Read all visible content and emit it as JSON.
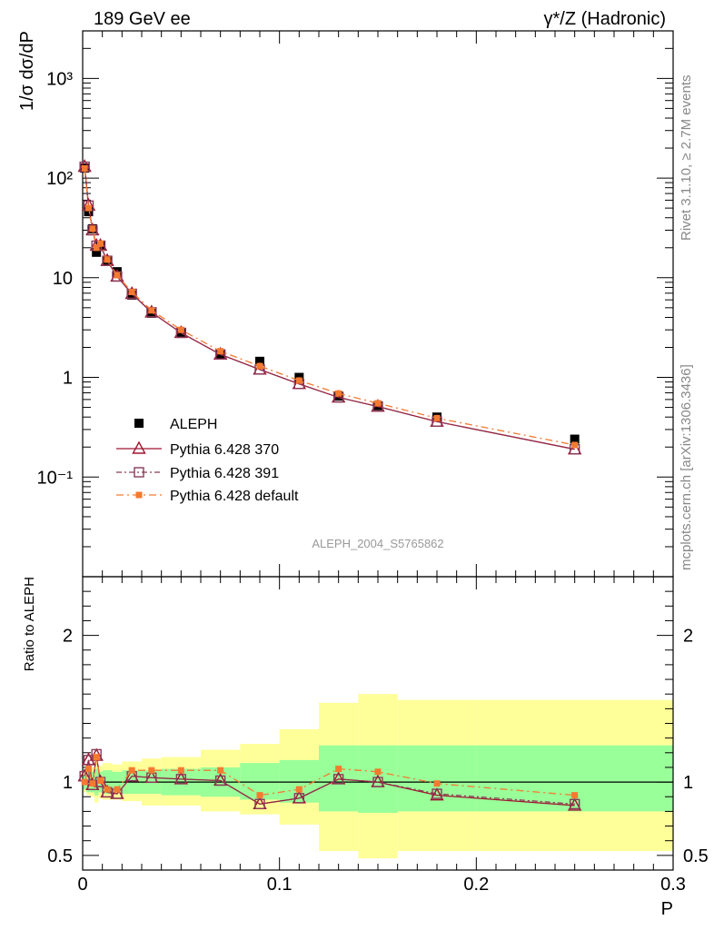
{
  "header": {
    "left": "189 GeV ee",
    "right": "γ*/Z (Hadronic)"
  },
  "side_texts": {
    "rivet": "Rivet 3.1.10, ≥ 2.7M events",
    "mcplots": "mcplots.cern.ch [arXiv:1306.3436]"
  },
  "analysis_tag": "ALEPH_2004_S5765862",
  "colors": {
    "data": "#000000",
    "p370": "#a01530",
    "p391": "#8a3a5a",
    "pdef": "#f47a30",
    "band_outer": "#ffff99",
    "band_inner": "#99ff99"
  },
  "chart_data": [
    {
      "type": "scatter",
      "panel": "main",
      "ylabel": "1/σ  dσ/dP",
      "yscale": "log",
      "xlim": [
        0,
        0.3
      ],
      "ylim": [
        0.01,
        3000
      ],
      "y_tick_labels": [
        "10⁻¹",
        "1",
        "10",
        "10²",
        "10³"
      ],
      "legend_position": "center-left",
      "x": [
        0.001,
        0.003,
        0.005,
        0.007,
        0.009,
        0.0125,
        0.0175,
        0.025,
        0.035,
        0.05,
        0.07,
        0.09,
        0.11,
        0.13,
        0.15,
        0.18,
        0.25
      ],
      "series": [
        {
          "name": "ALEPH",
          "marker": "filled-square",
          "values": [
            126,
            46,
            31,
            18,
            21,
            15,
            11.5,
            6.7,
            4.4,
            2.8,
            1.7,
            1.45,
            1.0,
            0.65,
            0.52,
            0.4,
            0.24
          ]
        },
        {
          "name": "Pythia 6.428 370",
          "marker": "open-triangle",
          "values": [
            130,
            53,
            30,
            21,
            21,
            14.8,
            10.3,
            6.9,
            4.5,
            2.8,
            1.7,
            1.2,
            0.86,
            0.63,
            0.51,
            0.36,
            0.19
          ]
        },
        {
          "name": "Pythia 6.428 391",
          "marker": "open-square",
          "values": [
            130,
            53,
            30,
            21,
            21,
            14.8,
            10.3,
            6.9,
            4.5,
            2.8,
            1.7,
            1.2,
            0.86,
            0.63,
            0.51,
            0.36,
            0.19
          ]
        },
        {
          "name": "Pythia 6.428 default",
          "marker": "small-filled-square",
          "values": [
            125,
            50,
            31,
            20,
            22,
            15.2,
            10.6,
            7.2,
            4.7,
            3.0,
            1.83,
            1.3,
            0.93,
            0.69,
            0.55,
            0.39,
            0.21
          ]
        }
      ]
    },
    {
      "type": "line",
      "panel": "ratio",
      "ylabel": "Ratio to ALEPH",
      "xlabel": "P",
      "xlim": [
        0,
        0.3
      ],
      "ylim": [
        0.4,
        2.4
      ],
      "x_tick_labels": [
        "0",
        "0.1",
        "0.2",
        "0.3"
      ],
      "y_tick_labels": [
        "0.5",
        "1",
        "2"
      ],
      "bins": [
        {
          "x0": 0.0,
          "x1": 0.002,
          "inner": [
            0.95,
            1.05
          ],
          "outer": [
            0.93,
            1.08
          ]
        },
        {
          "x0": 0.002,
          "x1": 0.004,
          "inner": [
            0.93,
            1.07
          ],
          "outer": [
            0.91,
            1.09
          ]
        },
        {
          "x0": 0.004,
          "x1": 0.006,
          "inner": [
            0.93,
            1.07
          ],
          "outer": [
            0.9,
            1.1
          ]
        },
        {
          "x0": 0.006,
          "x1": 0.008,
          "inner": [
            0.91,
            1.09
          ],
          "outer": [
            0.86,
            1.14
          ]
        },
        {
          "x0": 0.008,
          "x1": 0.01,
          "inner": [
            0.93,
            1.07
          ],
          "outer": [
            0.89,
            1.11
          ]
        },
        {
          "x0": 0.01,
          "x1": 0.015,
          "inner": [
            0.92,
            1.08
          ],
          "outer": [
            0.88,
            1.13
          ]
        },
        {
          "x0": 0.015,
          "x1": 0.02,
          "inner": [
            0.93,
            1.07
          ],
          "outer": [
            0.88,
            1.12
          ]
        },
        {
          "x0": 0.02,
          "x1": 0.03,
          "inner": [
            0.92,
            1.08
          ],
          "outer": [
            0.87,
            1.14
          ]
        },
        {
          "x0": 0.03,
          "x1": 0.04,
          "inner": [
            0.92,
            1.08
          ],
          "outer": [
            0.84,
            1.16
          ]
        },
        {
          "x0": 0.04,
          "x1": 0.06,
          "inner": [
            0.91,
            1.09
          ],
          "outer": [
            0.84,
            1.17
          ]
        },
        {
          "x0": 0.06,
          "x1": 0.08,
          "inner": [
            0.9,
            1.1
          ],
          "outer": [
            0.8,
            1.22
          ]
        },
        {
          "x0": 0.08,
          "x1": 0.1,
          "inner": [
            0.88,
            1.13
          ],
          "outer": [
            0.78,
            1.26
          ]
        },
        {
          "x0": 0.1,
          "x1": 0.12,
          "inner": [
            0.86,
            1.15
          ],
          "outer": [
            0.71,
            1.36
          ]
        },
        {
          "x0": 0.12,
          "x1": 0.14,
          "inner": [
            0.8,
            1.25
          ],
          "outer": [
            0.53,
            1.54
          ]
        },
        {
          "x0": 0.14,
          "x1": 0.16,
          "inner": [
            0.79,
            1.25
          ],
          "outer": [
            0.48,
            1.6
          ]
        },
        {
          "x0": 0.16,
          "x1": 0.2,
          "inner": [
            0.8,
            1.25
          ],
          "outer": [
            0.53,
            1.56
          ]
        },
        {
          "x0": 0.2,
          "x1": 0.3,
          "inner": [
            0.8,
            1.25
          ],
          "outer": [
            0.53,
            1.56
          ]
        }
      ],
      "x": [
        0.001,
        0.003,
        0.005,
        0.007,
        0.009,
        0.0125,
        0.0175,
        0.025,
        0.035,
        0.05,
        0.07,
        0.09,
        0.11,
        0.13,
        0.15,
        0.18,
        0.25
      ],
      "series": [
        {
          "name": "ALEPH",
          "values": [
            1,
            1,
            1,
            1,
            1,
            1,
            1,
            1,
            1,
            1,
            1,
            1,
            1,
            1,
            1,
            1,
            1
          ]
        },
        {
          "name": "Pythia 6.428 370",
          "values": [
            1.04,
            1.15,
            0.98,
            1.18,
            1.0,
            0.93,
            0.92,
            1.04,
            1.03,
            1.02,
            1.01,
            0.85,
            0.89,
            1.02,
            1.0,
            0.91,
            0.84
          ]
        },
        {
          "name": "Pythia 6.428 391",
          "values": [
            1.04,
            1.15,
            0.98,
            1.19,
            1.0,
            0.93,
            0.92,
            1.04,
            1.03,
            1.02,
            1.01,
            0.85,
            0.89,
            1.02,
            1.0,
            0.92,
            0.85
          ]
        },
        {
          "name": "Pythia 6.428 default",
          "values": [
            1.0,
            1.09,
            0.99,
            1.17,
            1.01,
            0.95,
            0.95,
            1.08,
            1.08,
            1.08,
            1.08,
            0.91,
            0.95,
            1.09,
            1.07,
            0.99,
            0.91
          ]
        }
      ]
    }
  ]
}
